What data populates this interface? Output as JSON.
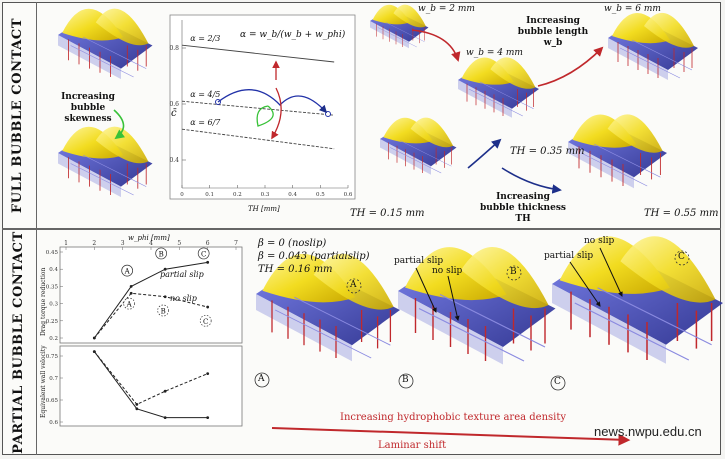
{
  "side_labels": {
    "top": "FULL BUBBLE CONTACT",
    "bottom": "PARTIAL BUBBLE CONTACT"
  },
  "top": {
    "skewness_label": "Increasing bubble skewness",
    "chart": {
      "formula": "α = w_b/(w_b + w_phi)",
      "ylabel": "c̄",
      "xlabel": "TH [mm]",
      "yticks": [
        "0.8",
        "0.6",
        "0.4"
      ],
      "xticks": [
        "0",
        "0.1",
        "0.2",
        "0.3",
        "0.4",
        "0.5",
        "0.6"
      ],
      "lines": [
        {
          "label": "α = 2/3",
          "points": [
            [
              0.0,
              0.81
            ],
            [
              0.55,
              0.75
            ]
          ]
        },
        {
          "label": "α = 4/5",
          "points": [
            [
              0.0,
              0.61
            ],
            [
              0.55,
              0.56
            ]
          ]
        },
        {
          "label": "α = 6/7",
          "points": [
            [
              0.0,
              0.51
            ],
            [
              0.55,
              0.44
            ]
          ]
        }
      ]
    },
    "wb2": "w_b = 2 mm",
    "wb4": "w_b = 4 mm",
    "wb6": "w_b = 6 mm",
    "length_label": "Increasing bubble length w_b",
    "th035": "TH = 0.35 mm",
    "th015": "TH = 0.15 mm",
    "th055": "TH = 0.55 mm",
    "thickness_label": "Increasing bubble thickness TH"
  },
  "bottom": {
    "chart": {
      "xlabel": "w_phi [mm]",
      "xticks": [
        "1",
        "2",
        "3",
        "4",
        "5",
        "6",
        "7"
      ],
      "top_ylabel": "Drag torque reduction",
      "top_yticks": [
        "0.45",
        "0.4",
        "0.35",
        "0.3",
        "0.25",
        "0.2"
      ],
      "bottom_ylabel": "Equivalent wall velocity",
      "bottom_yticks": [
        "0.75",
        "0.7",
        "0.65",
        "0.6"
      ],
      "point_labels": [
        "A",
        "B",
        "C"
      ],
      "partial_slip": "partial slip",
      "no_slip": "no slip",
      "series_top_partial": [
        [
          2,
          0.2
        ],
        [
          3.3,
          0.35
        ],
        [
          4.5,
          0.4
        ],
        [
          6,
          0.42
        ]
      ],
      "series_top_noslip": [
        [
          2,
          0.2
        ],
        [
          3.3,
          0.33
        ],
        [
          4.5,
          0.32
        ],
        [
          6,
          0.29
        ]
      ],
      "series_bot_partial": [
        [
          2,
          0.76
        ],
        [
          3.5,
          0.63
        ],
        [
          4.5,
          0.61
        ],
        [
          6,
          0.61
        ]
      ],
      "series_bot_noslip": [
        [
          2,
          0.76
        ],
        [
          3.5,
          0.64
        ],
        [
          4.5,
          0.67
        ],
        [
          6,
          0.71
        ]
      ]
    },
    "eq1": "β = 0 (noslip)",
    "eq2": "β = 0.043 (partialslip)",
    "eq3": "TH = 0.16 mm",
    "case_labels": [
      "A",
      "B",
      "C"
    ],
    "partial_slip": "partial slip",
    "no_slip": "no slip",
    "arrow_text1": "Increasing hydrophobic texture area density",
    "arrow_text2": "Laminar shift",
    "watermark": "news.nwpu.edu.cn"
  },
  "colors": {
    "yellow": "#f4e02a",
    "blue": "#3f46c8",
    "red_arrow": "#c0282c",
    "green": "#38c238",
    "navy": "#1d2f8a"
  }
}
